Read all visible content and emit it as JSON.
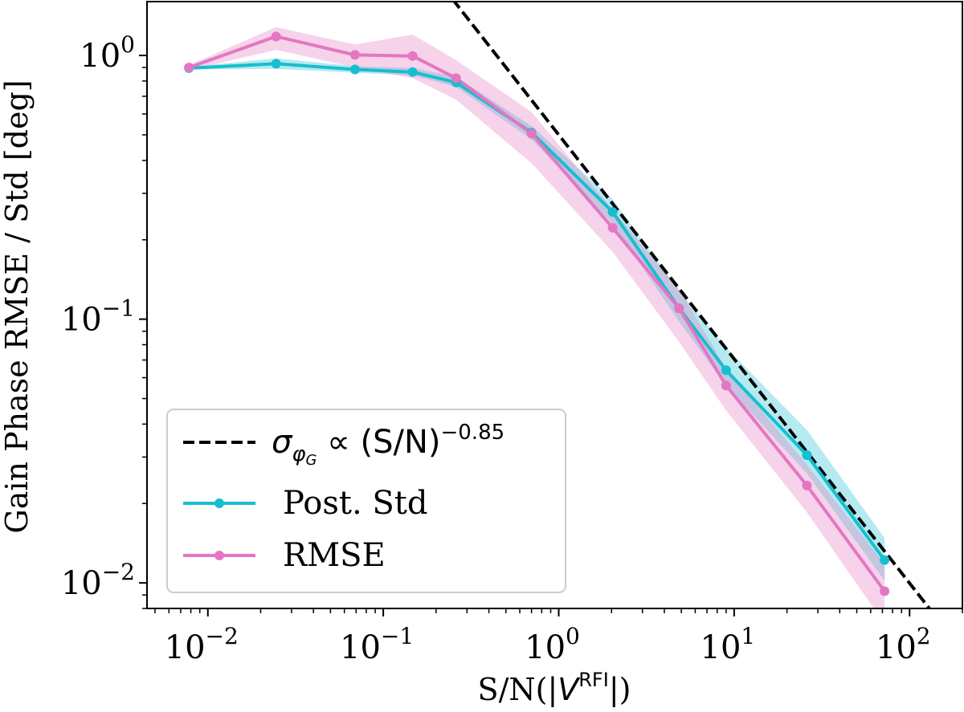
{
  "chart_data": {
    "type": "line",
    "xlabel": "S/N(|V^RFI|)",
    "ylabel": "Gain Phase RMSE / Std [deg]",
    "x_scale": "log",
    "y_scale": "log",
    "xlim": [
      0.0045,
      200
    ],
    "ylim": [
      0.008,
      1.6
    ],
    "grid": false,
    "legend_position": "lower-left",
    "x_ticks": [
      0.01,
      0.1,
      1,
      10,
      100
    ],
    "x_tick_labels": [
      {
        "base": "10",
        "exp": "−2"
      },
      {
        "base": "10",
        "exp": "−1"
      },
      {
        "base": "10",
        "exp": "0"
      },
      {
        "base": "10",
        "exp": "1"
      },
      {
        "base": "10",
        "exp": "2"
      }
    ],
    "y_ticks": [
      0.01,
      0.1,
      1
    ],
    "y_tick_labels": [
      {
        "base": "10",
        "exp": "−2"
      },
      {
        "base": "10",
        "exp": "−1"
      },
      {
        "base": "10",
        "exp": "0"
      }
    ],
    "x": [
      0.0078,
      0.0245,
      0.069,
      0.147,
      0.26,
      0.7,
      2.03,
      4.85,
      9.0,
      26,
      72
    ],
    "series": [
      {
        "name": "Post. Std",
        "color": "#17becf",
        "values": [
          0.895,
          0.93,
          0.885,
          0.865,
          0.79,
          0.51,
          0.255,
          0.11,
          0.064,
          0.0305,
          0.0122
        ],
        "band_lower": [
          0.885,
          0.89,
          0.86,
          0.84,
          0.76,
          0.48,
          0.23,
          0.098,
          0.056,
          0.026,
          0.0102
        ],
        "band_upper": [
          0.905,
          0.975,
          0.91,
          0.895,
          0.83,
          0.54,
          0.285,
          0.128,
          0.078,
          0.038,
          0.0148
        ]
      },
      {
        "name": "RMSE",
        "color": "#e377c2",
        "values": [
          0.9,
          1.18,
          1.005,
          0.995,
          0.82,
          0.505,
          0.222,
          0.11,
          0.056,
          0.0234,
          0.0093
        ],
        "band_lower": [
          0.88,
          1.05,
          0.9,
          0.82,
          0.68,
          0.39,
          0.18,
          0.082,
          0.045,
          0.0185,
          0.007
        ],
        "band_upper": [
          0.92,
          1.28,
          1.1,
          1.2,
          0.96,
          0.61,
          0.26,
          0.13,
          0.065,
          0.028,
          0.0118
        ]
      }
    ],
    "reference_line": {
      "label": "σ_φG ∝ (S/N)^−0.85",
      "exponent": -0.85,
      "amplitude": 0.5,
      "color": "#000000"
    },
    "legend": {
      "ref_sigma": "σ",
      "ref_sub": "φ",
      "ref_subsub": "G",
      "ref_rest": " ∝ (S/N)",
      "ref_exp": "−0.85",
      "item1": "Post. Std",
      "item2": "RMSE"
    },
    "xlabel_parts": {
      "pre": "S/N(|",
      "v": "V",
      "sup": "RFI",
      "post": "|)"
    }
  }
}
